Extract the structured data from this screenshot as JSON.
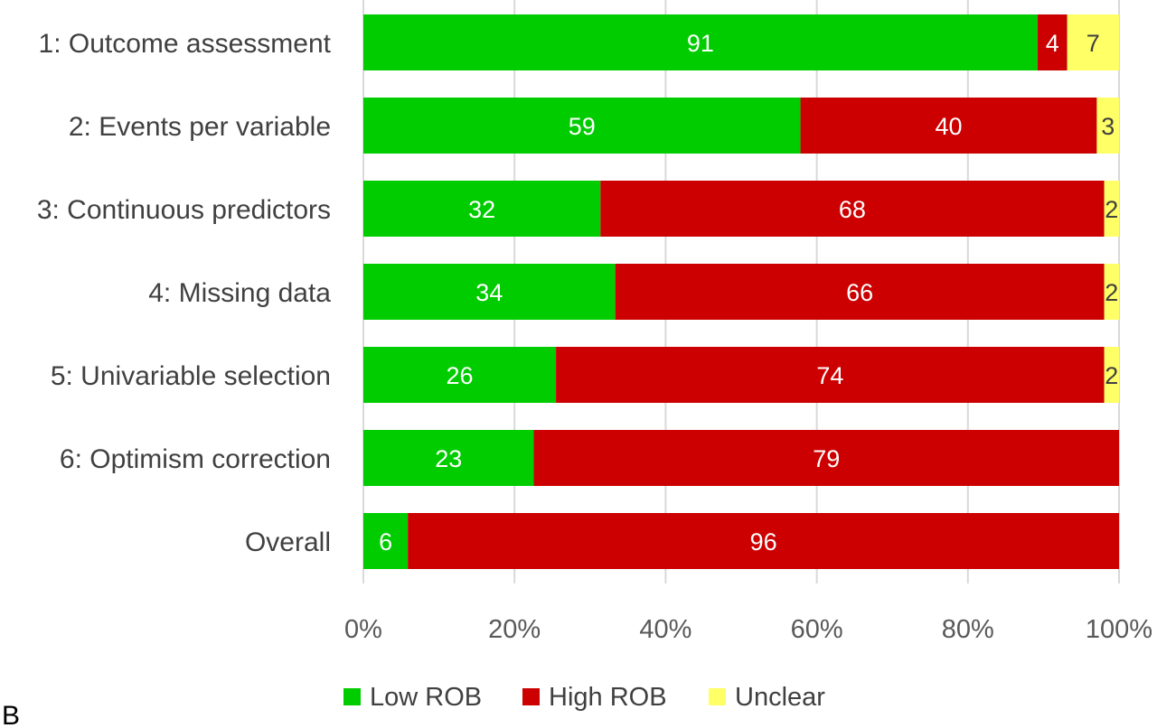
{
  "chart_data": {
    "type": "bar",
    "orientation": "horizontal",
    "stacked": true,
    "normalized": true,
    "categories": [
      "1: Outcome assessment",
      "2: Events per variable",
      "3: Continuous predictors",
      "4: Missing data",
      "5: Univariable selection",
      "6: Optimism correction",
      "Overall"
    ],
    "series": [
      {
        "name": "Low ROB",
        "color": "#00cc00",
        "label_color": "#ffffff",
        "values": [
          91,
          59,
          32,
          34,
          26,
          23,
          6
        ]
      },
      {
        "name": "High ROB",
        "color": "#cc0000",
        "label_color": "#ffffff",
        "values": [
          4,
          40,
          68,
          66,
          74,
          79,
          96
        ]
      },
      {
        "name": "Unclear",
        "color": "#ffff66",
        "label_color": "#404040",
        "values": [
          7,
          3,
          2,
          2,
          2,
          0,
          0
        ]
      }
    ],
    "x_ticks": [
      "0%",
      "20%",
      "40%",
      "60%",
      "80%",
      "100%"
    ],
    "xlim": [
      0,
      100
    ],
    "grid": true,
    "legend_position": "bottom",
    "panel_label": "B"
  }
}
